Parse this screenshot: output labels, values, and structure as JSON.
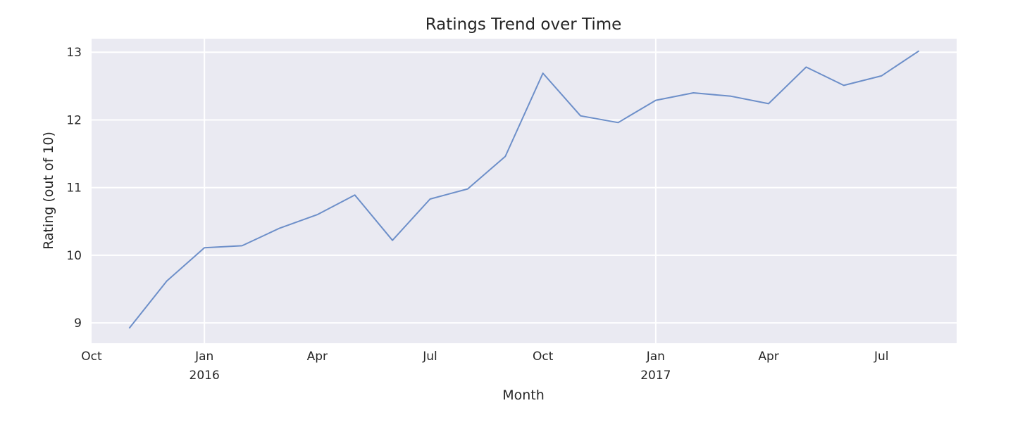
{
  "chart_data": {
    "type": "line",
    "title": "Ratings Trend over Time",
    "xlabel": "Month",
    "ylabel": "Rating (out of 10)",
    "x_type": "date-monthly",
    "xlim": [
      "2015-10",
      "2017-09"
    ],
    "ylim": [
      8.7,
      13.2
    ],
    "grid": true,
    "legend": "none",
    "background_color": "#eaeaf2",
    "line_color": "#6d8fc9",
    "x_ticks": [
      {
        "date": "2015-10",
        "label": "Oct",
        "sublabel": ""
      },
      {
        "date": "2016-01",
        "label": "Jan",
        "sublabel": "2016"
      },
      {
        "date": "2016-04",
        "label": "Apr",
        "sublabel": ""
      },
      {
        "date": "2016-07",
        "label": "Jul",
        "sublabel": ""
      },
      {
        "date": "2016-10",
        "label": "Oct",
        "sublabel": ""
      },
      {
        "date": "2017-01",
        "label": "Jan",
        "sublabel": "2017"
      },
      {
        "date": "2017-04",
        "label": "Apr",
        "sublabel": ""
      },
      {
        "date": "2017-07",
        "label": "Jul",
        "sublabel": ""
      }
    ],
    "y_ticks": [
      9,
      10,
      11,
      12,
      13
    ],
    "x": [
      "2015-11",
      "2015-12",
      "2016-01",
      "2016-02",
      "2016-03",
      "2016-04",
      "2016-05",
      "2016-06",
      "2016-07",
      "2016-08",
      "2016-09",
      "2016-10",
      "2016-11",
      "2016-12",
      "2017-01",
      "2017-02",
      "2017-03",
      "2017-04",
      "2017-05",
      "2017-06",
      "2017-07",
      "2017-08"
    ],
    "series": [
      {
        "values": [
          8.92,
          9.62,
          10.11,
          10.14,
          10.4,
          10.6,
          10.89,
          10.22,
          10.83,
          10.98,
          11.46,
          12.69,
          12.06,
          11.96,
          12.29,
          12.4,
          12.35,
          12.24,
          12.78,
          12.51,
          12.65,
          13.02
        ]
      }
    ]
  }
}
